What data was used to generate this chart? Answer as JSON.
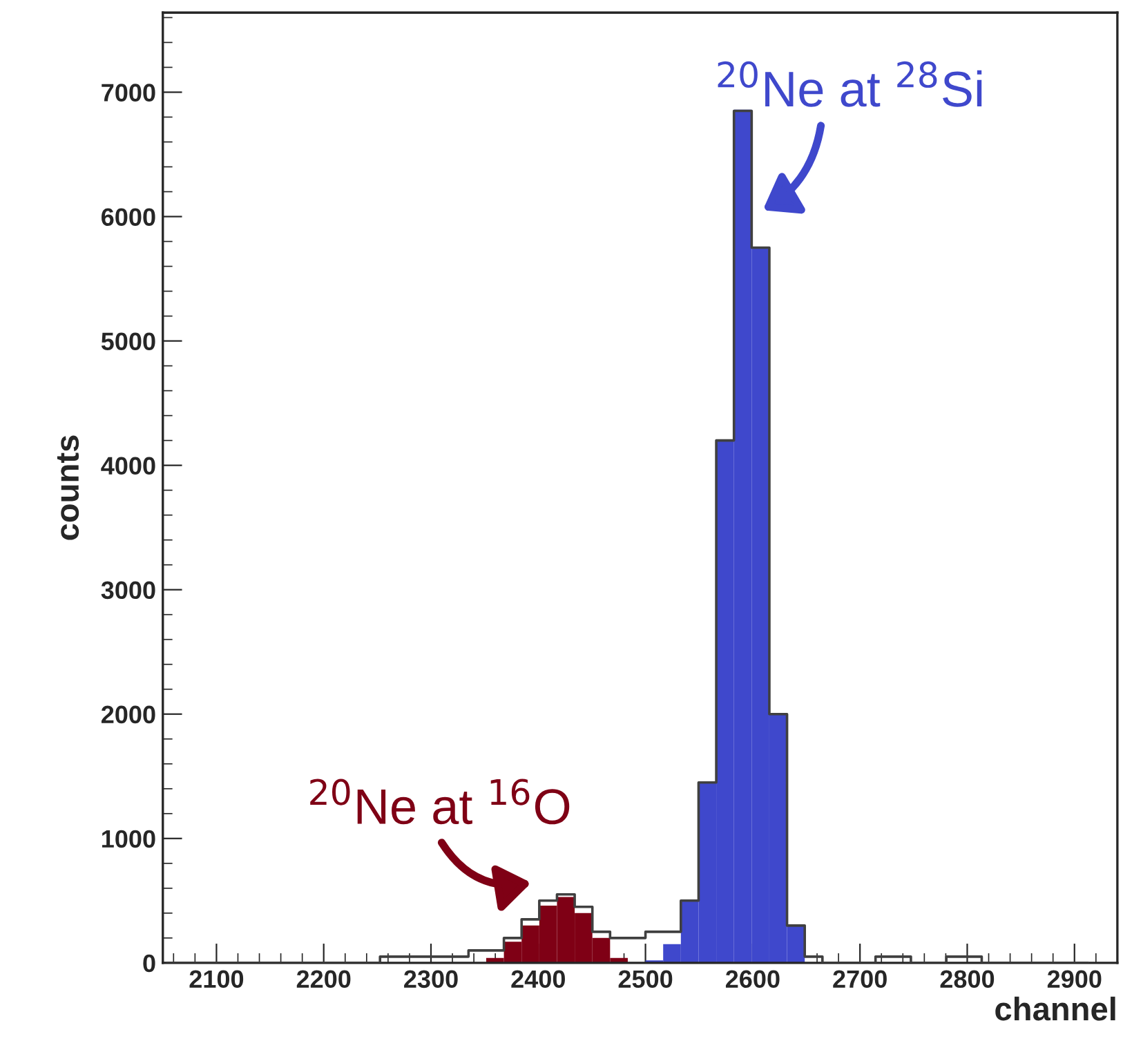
{
  "chart_data": {
    "type": "histogram",
    "xlabel": "channel",
    "ylabel": "counts",
    "bins": [
      2054.5,
      2071,
      2087.5,
      2104,
      2120.5,
      2137,
      2153.5,
      2170,
      2186.5,
      2203,
      2219.5,
      2236,
      2252.5,
      2269,
      2285.5,
      2302,
      2318.5,
      2335,
      2351.5,
      2368,
      2384.5,
      2401,
      2417.5,
      2434,
      2450.5,
      2467,
      2483.5,
      2500,
      2516.5,
      2533,
      2549.5,
      2566,
      2582.5,
      2599,
      2615.5,
      2632,
      2648.5,
      2665,
      2681.5,
      2698,
      2714.5,
      2731,
      2747.5,
      2764,
      2780.5,
      2797,
      2813.5,
      2830,
      2846.5,
      2863,
      2879.5,
      2896,
      2912.5,
      2929
    ],
    "series": [
      {
        "type": "step",
        "color": "#404040",
        "x": [
          2054.5,
          2071,
          2087.5,
          2104,
          2120.5,
          2137,
          2153.5,
          2170,
          2186.5,
          2203,
          2219.5,
          2236,
          2252.5,
          2269,
          2285.5,
          2302,
          2318.5,
          2335,
          2351.5,
          2368,
          2384.5,
          2401,
          2417.5,
          2434,
          2450.5,
          2467,
          2483.5,
          2500,
          2516.5,
          2533,
          2549.5,
          2566,
          2582.5,
          2599,
          2615.5,
          2632,
          2648.5,
          2665,
          2681.5,
          2698,
          2714.5,
          2731,
          2747.5,
          2764,
          2780.5,
          2797,
          2813.5,
          2830,
          2846.5,
          2863,
          2879.5,
          2896,
          2912.5
        ],
        "values": [
          0,
          0,
          0,
          0,
          0,
          0,
          0,
          0,
          0,
          0,
          0,
          0,
          50,
          50,
          50,
          50,
          50,
          100,
          100,
          200,
          350,
          500,
          550,
          450,
          250,
          200,
          200,
          250,
          250,
          500,
          1450,
          4200,
          6850,
          5750,
          2000,
          300,
          50,
          0,
          0,
          0,
          50,
          50,
          0,
          0,
          50,
          50,
          0,
          0,
          0,
          0,
          0,
          0,
          0
        ]
      },
      {
        "color": "#7f0015",
        "values": [
          null,
          null,
          null,
          null,
          null,
          null,
          null,
          null,
          null,
          null,
          null,
          null,
          null,
          null,
          null,
          null,
          null,
          null,
          40,
          170,
          300,
          460,
          530,
          400,
          200,
          40,
          null,
          null,
          null,
          null,
          null,
          null,
          null,
          null,
          null,
          null,
          null,
          null,
          null,
          null,
          null,
          null,
          null,
          null,
          null,
          null,
          null,
          null,
          null,
          null,
          null,
          null,
          null
        ]
      },
      {
        "color": "#3f48cc",
        "values": [
          null,
          null,
          null,
          null,
          null,
          null,
          null,
          null,
          null,
          null,
          null,
          null,
          null,
          null,
          null,
          null,
          null,
          null,
          null,
          null,
          null,
          null,
          null,
          null,
          null,
          null,
          null,
          20,
          150,
          500,
          1460,
          4200,
          6860,
          5750,
          2000,
          300,
          null,
          null,
          null,
          null,
          null,
          null,
          null,
          null,
          null,
          null,
          null,
          null,
          null,
          null,
          null,
          null,
          null
        ]
      }
    ],
    "xlim": [
      2050,
      2940
    ],
    "ylim": [
      0,
      7640
    ],
    "xticks": [
      2100,
      2200,
      2300,
      2400,
      2500,
      2600,
      2700,
      2800,
      2900
    ],
    "yticks": [
      0,
      1000,
      2000,
      3000,
      4000,
      5000,
      6000,
      7000
    ],
    "grid": false,
    "annotations": [
      "$^{20}$Ne at $^{16}$O",
      "$^{20}$Ne at $^{28}$Si"
    ]
  }
}
